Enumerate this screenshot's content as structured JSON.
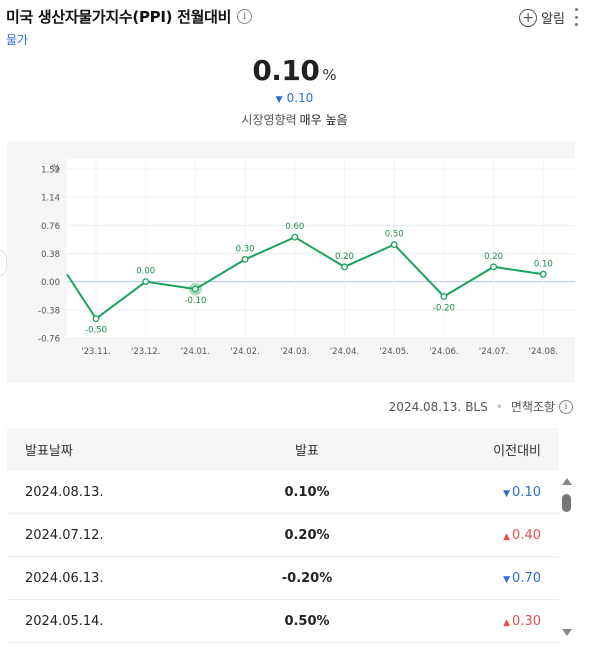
{
  "header": {
    "title": "미국 생산자물가지수(PPI) 전월대비",
    "info_glyph": "i",
    "category": "물가",
    "alarm_label": "알림",
    "alarm_glyph": "+"
  },
  "summary": {
    "value": "0.10",
    "unit": "%",
    "change_arrow": "▼",
    "change": "0.10",
    "impact_label": "시장영향력",
    "impact_value": "매우 높음"
  },
  "chart_data": {
    "type": "line",
    "ylabel": "%",
    "y_ticks": [
      "1.52",
      "1.14",
      "0.76",
      "0.38",
      "0.00",
      "-0.38",
      "-0.76"
    ],
    "ylim": [
      -0.76,
      1.52
    ],
    "categories": [
      "'23.11.",
      "'23.12.",
      "'24.01.",
      "'24.02.",
      "'24.03.",
      "'24.04.",
      "'24.05.",
      "'24.06.",
      "'24.07.",
      "'24.08."
    ],
    "values": [
      -0.5,
      0.0,
      -0.1,
      0.3,
      0.6,
      0.2,
      0.5,
      -0.2,
      0.2,
      0.1
    ],
    "labels": [
      "-0.50",
      "0.00",
      "-0.10",
      "0.30",
      "0.60",
      "0.20",
      "0.50",
      "-0.20",
      "0.20",
      "0.10"
    ],
    "lead_in_value": 0.1,
    "highlighted_index": 2,
    "line_color": "#1aa35b",
    "grid": true
  },
  "source": {
    "date": "2024.08.13.",
    "agency": "BLS",
    "separator": "•",
    "disclaimer": "면책조항"
  },
  "table": {
    "headers": [
      "발표날짜",
      "발표",
      "이전대비"
    ],
    "rows": [
      {
        "date": "2024.08.13.",
        "value": "0.10%",
        "arrow": "▼",
        "diff": "0.10",
        "dir": "down"
      },
      {
        "date": "2024.07.12.",
        "value": "0.20%",
        "arrow": "▲",
        "diff": "0.40",
        "dir": "up"
      },
      {
        "date": "2024.06.13.",
        "value": "-0.20%",
        "arrow": "▼",
        "diff": "0.70",
        "dir": "down"
      },
      {
        "date": "2024.05.14.",
        "value": "0.50%",
        "arrow": "▲",
        "diff": "0.30",
        "dir": "up"
      }
    ]
  },
  "colors": {
    "accent_blue": "#2e6dd1",
    "down": "#2e6dd1",
    "up": "#e05050",
    "line": "#1aa35b"
  }
}
